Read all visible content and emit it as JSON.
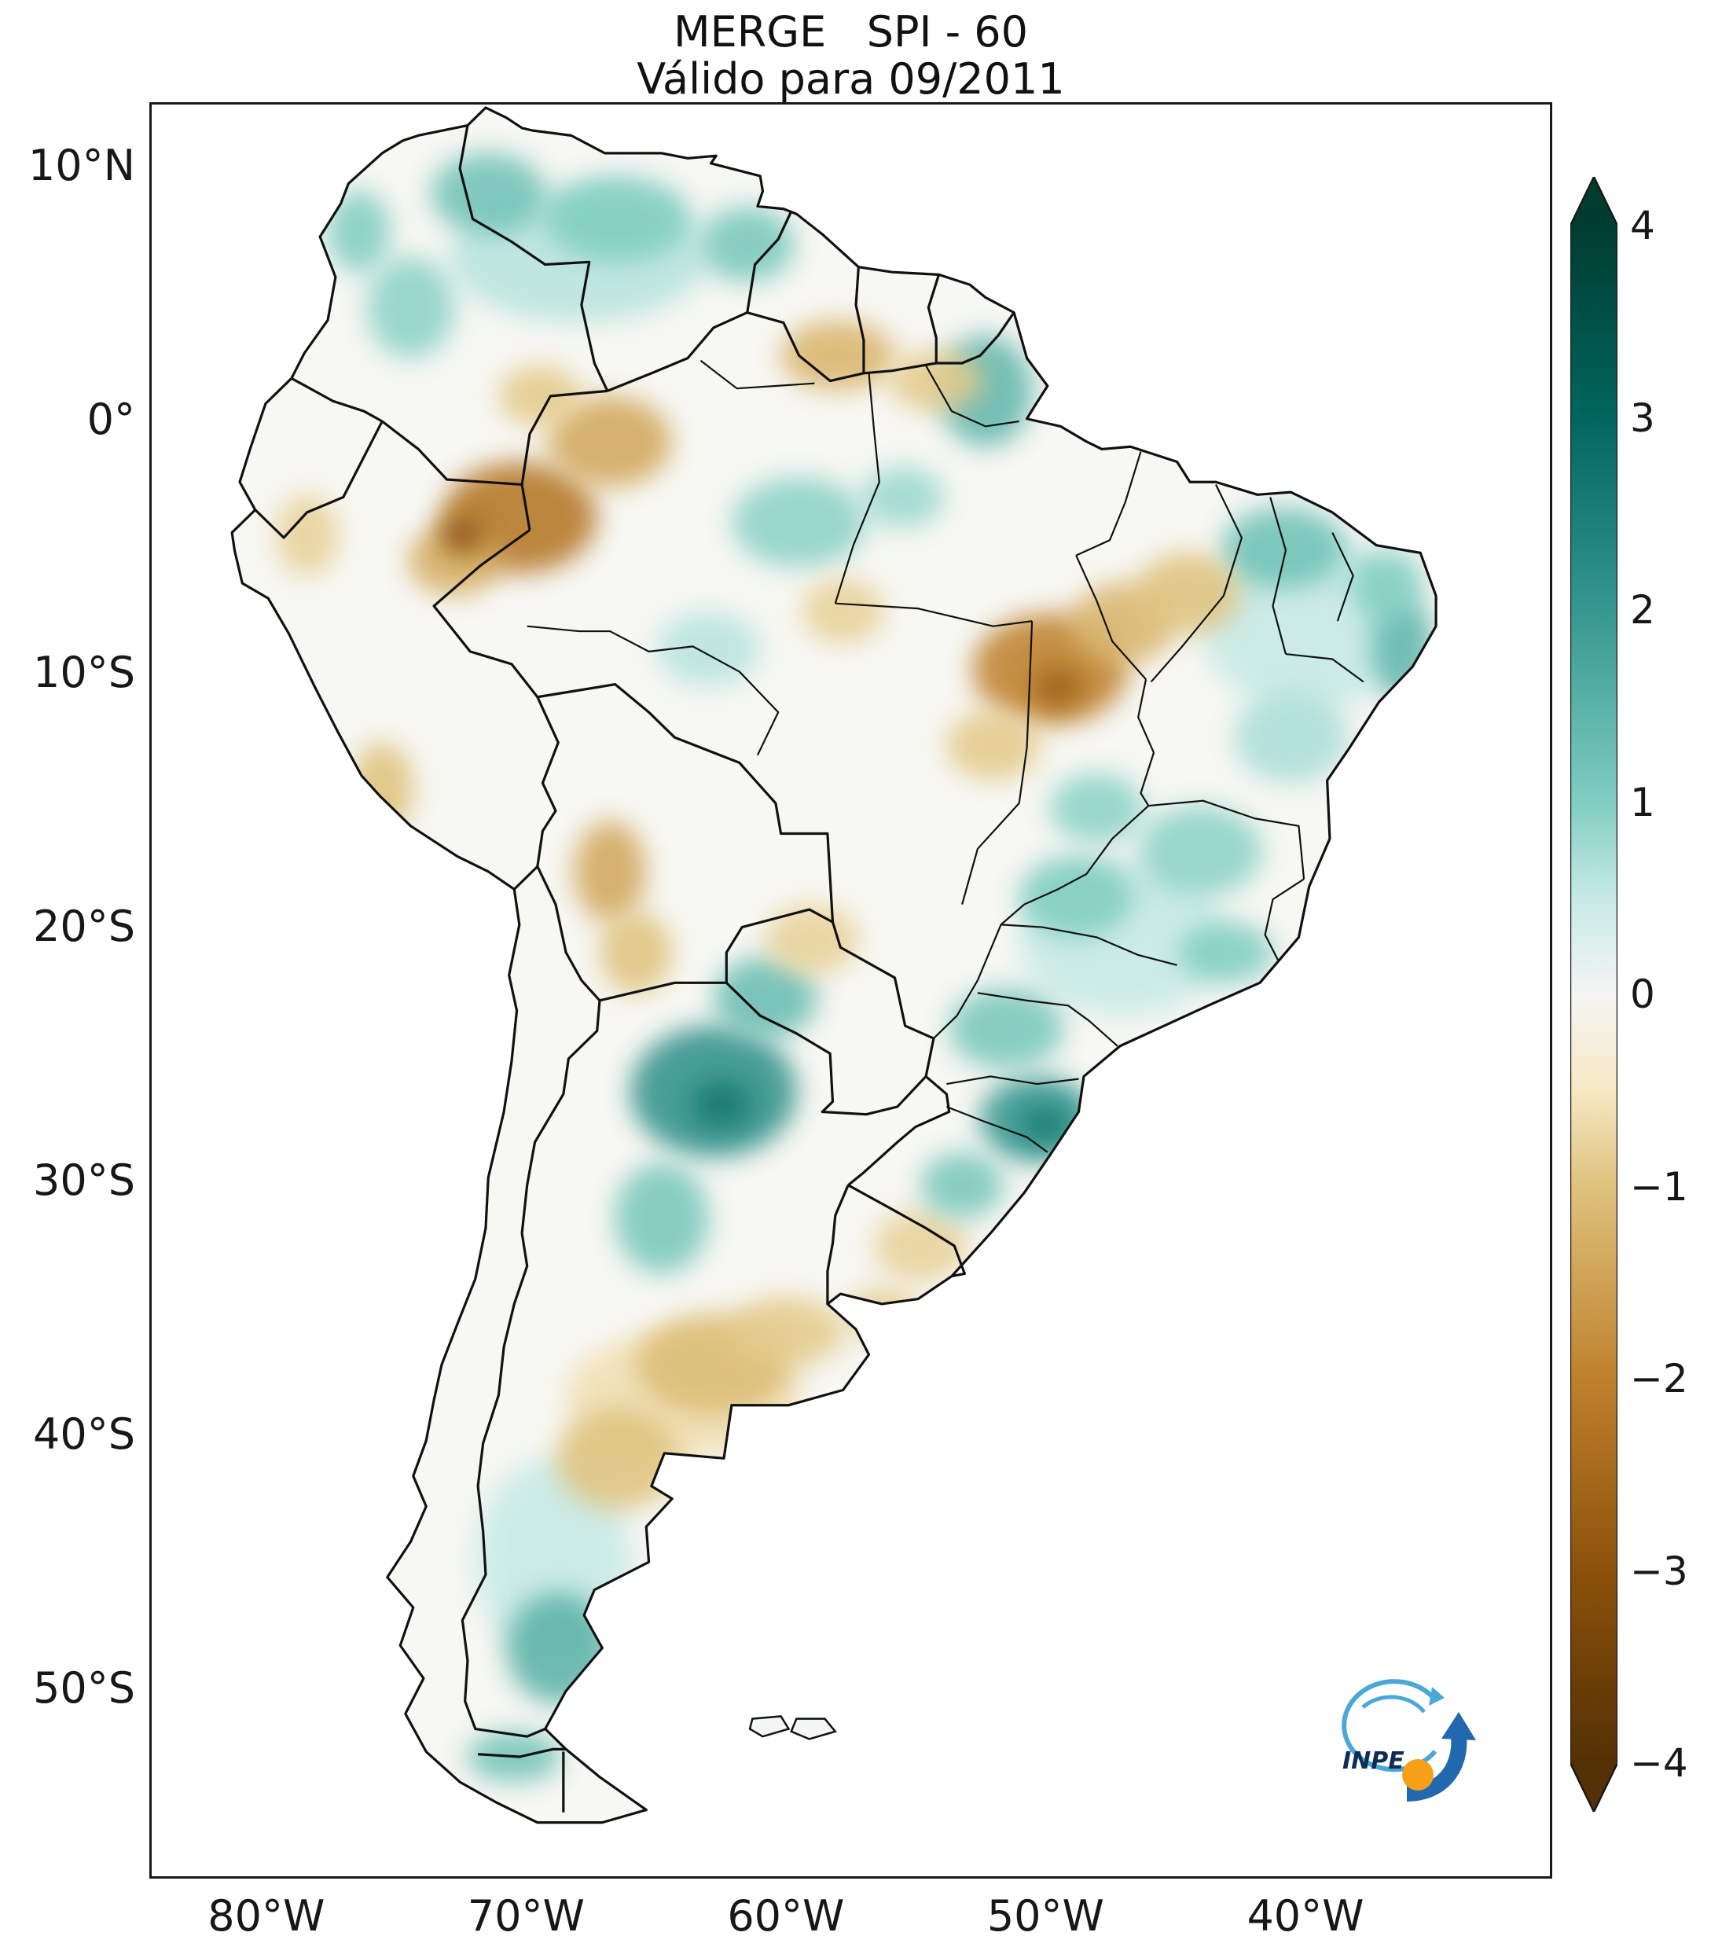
{
  "figure": {
    "title": "MERGE   SPI - 60",
    "subtitle": "Válido para 09/2011"
  },
  "axes": {
    "y_ticks": [
      {
        "label": "10°N",
        "lat": 10
      },
      {
        "label": "0°",
        "lat": 0
      },
      {
        "label": "10°S",
        "lat": -10
      },
      {
        "label": "20°S",
        "lat": -20
      },
      {
        "label": "30°S",
        "lat": -30
      },
      {
        "label": "40°S",
        "lat": -40
      },
      {
        "label": "50°S",
        "lat": -50
      }
    ],
    "x_ticks": [
      {
        "label": "80°W",
        "lon": -80
      },
      {
        "label": "70°W",
        "lon": -70
      },
      {
        "label": "60°W",
        "lon": -60
      },
      {
        "label": "50°W",
        "lon": -50
      },
      {
        "label": "40°W",
        "lon": -40
      }
    ]
  },
  "colorbar": {
    "colormap": "BrBG",
    "extend": "both",
    "range": [
      -4,
      4
    ],
    "ticks": [
      {
        "label": "4",
        "v": 4
      },
      {
        "label": "3",
        "v": 3
      },
      {
        "label": "2",
        "v": 2
      },
      {
        "label": "1",
        "v": 1
      },
      {
        "label": "0",
        "v": 0
      },
      {
        "label": "−1",
        "v": -1
      },
      {
        "label": "−2",
        "v": -2
      },
      {
        "label": "−3",
        "v": -3
      },
      {
        "label": "−4",
        "v": -4
      }
    ],
    "stops": [
      {
        "v": 4,
        "c": "#003c30"
      },
      {
        "v": 3,
        "c": "#01665e"
      },
      {
        "v": 2,
        "c": "#35978f"
      },
      {
        "v": 1,
        "c": "#80cdc1"
      },
      {
        "v": 0.5,
        "c": "#c7eae5"
      },
      {
        "v": 0,
        "c": "#f5f5f5"
      },
      {
        "v": -0.5,
        "c": "#f6e8c3"
      },
      {
        "v": -1,
        "c": "#dfc27d"
      },
      {
        "v": -2,
        "c": "#bf812d"
      },
      {
        "v": -3,
        "c": "#8c510a"
      },
      {
        "v": -4,
        "c": "#543005"
      }
    ]
  },
  "logo": {
    "label": "INPE"
  },
  "chart_data": {
    "type": "heatmap",
    "title": "MERGE   SPI - 60",
    "subtitle": "Válido para 09/2011",
    "product": "MERGE",
    "variable": "SPI-60 (Standardized Precipitation Index, 60 months)",
    "valid_for": "09/2011",
    "region": "South America",
    "x_tick_labels": [
      "80°W",
      "70°W",
      "60°W",
      "50°W",
      "40°W"
    ],
    "y_tick_labels": [
      "10°N",
      "0°",
      "10°S",
      "20°S",
      "30°S",
      "40°S",
      "50°S"
    ],
    "colorbar_range": [
      -4,
      4
    ],
    "extent": {
      "lon_min": -84.5,
      "lon_max": -30.5,
      "lat_min": -57.5,
      "lat_max": 12.5
    },
    "land_base_spi_color": "#f7f7f3",
    "anomalies": [
      {
        "lon": -68.0,
        "lat": 6.5,
        "rx": 5.0,
        "ry": 2.6,
        "spi": 0.6
      },
      {
        "lon": -71.5,
        "lat": 9.0,
        "rx": 2.2,
        "ry": 1.6,
        "spi": 1.2
      },
      {
        "lon": -66.5,
        "lat": 8.0,
        "rx": 2.8,
        "ry": 1.7,
        "spi": 1.0
      },
      {
        "lon": -61.5,
        "lat": 7.0,
        "rx": 1.8,
        "ry": 1.5,
        "spi": 1.1
      },
      {
        "lon": -74.5,
        "lat": 4.5,
        "rx": 1.7,
        "ry": 2.0,
        "spi": 0.9
      },
      {
        "lon": -76.5,
        "lat": 7.5,
        "rx": 1.2,
        "ry": 1.6,
        "spi": 1.0
      },
      {
        "lon": -52.3,
        "lat": 1.2,
        "rx": 1.8,
        "ry": 2.2,
        "spi": 1.4
      },
      {
        "lon": -59.5,
        "lat": -4.0,
        "rx": 2.6,
        "ry": 1.8,
        "spi": 0.9
      },
      {
        "lon": -55.5,
        "lat": -3.0,
        "rx": 1.6,
        "ry": 1.2,
        "spi": 0.8
      },
      {
        "lon": -40.8,
        "lat": -5.0,
        "rx": 2.4,
        "ry": 1.6,
        "spi": 1.2
      },
      {
        "lon": -36.2,
        "lat": -9.0,
        "rx": 1.2,
        "ry": 2.0,
        "spi": 1.4
      },
      {
        "lon": -36.8,
        "lat": -6.5,
        "rx": 1.4,
        "ry": 1.4,
        "spi": 1.0
      },
      {
        "lon": -40.0,
        "lat": -8.0,
        "rx": 4.0,
        "ry": 3.5,
        "spi": 0.5
      },
      {
        "lon": -40.5,
        "lat": -12.5,
        "rx": 2.2,
        "ry": 1.8,
        "spi": 0.7
      },
      {
        "lon": -44.0,
        "lat": -17.0,
        "rx": 2.4,
        "ry": 1.8,
        "spi": 0.9
      },
      {
        "lon": -48.8,
        "lat": -18.8,
        "rx": 2.2,
        "ry": 1.6,
        "spi": 1.0
      },
      {
        "lon": -47.0,
        "lat": -20.5,
        "rx": 4.0,
        "ry": 3.0,
        "spi": 0.5
      },
      {
        "lon": -43.0,
        "lat": -21.0,
        "rx": 1.8,
        "ry": 1.2,
        "spi": 1.0
      },
      {
        "lon": -48.0,
        "lat": -15.3,
        "rx": 1.8,
        "ry": 1.4,
        "spi": 0.9
      },
      {
        "lon": -51.5,
        "lat": -24.0,
        "rx": 2.2,
        "ry": 1.6,
        "spi": 1.1
      },
      {
        "lon": -50.3,
        "lat": -27.6,
        "rx": 2.2,
        "ry": 1.7,
        "spi": 2.0
      },
      {
        "lon": -50.0,
        "lat": -27.8,
        "rx": 0.9,
        "ry": 0.7,
        "spi": 2.6
      },
      {
        "lon": -53.2,
        "lat": -30.2,
        "rx": 1.6,
        "ry": 1.3,
        "spi": 1.1
      },
      {
        "lon": -62.8,
        "lat": -26.5,
        "rx": 3.2,
        "ry": 2.6,
        "spi": 2.1
      },
      {
        "lon": -62.5,
        "lat": -27.0,
        "rx": 1.2,
        "ry": 1.0,
        "spi": 2.6
      },
      {
        "lon": -60.8,
        "lat": -22.8,
        "rx": 2.0,
        "ry": 1.6,
        "spi": 1.3
      },
      {
        "lon": -64.8,
        "lat": -31.5,
        "rx": 1.8,
        "ry": 2.2,
        "spi": 1.1
      },
      {
        "lon": -68.8,
        "lat": -48.5,
        "rx": 2.0,
        "ry": 2.2,
        "spi": 1.5
      },
      {
        "lon": -70.5,
        "lat": -52.8,
        "rx": 1.8,
        "ry": 1.0,
        "spi": 1.2
      },
      {
        "lon": -69.0,
        "lat": -45.0,
        "rx": 3.0,
        "ry": 4.0,
        "spi": 0.5
      },
      {
        "lon": -63.0,
        "lat": -9.0,
        "rx": 2.0,
        "ry": 1.5,
        "spi": 0.6
      },
      {
        "lon": -70.3,
        "lat": -3.8,
        "rx": 3.0,
        "ry": 2.2,
        "spi": -2.2
      },
      {
        "lon": -72.5,
        "lat": -4.5,
        "rx": 0.9,
        "ry": 0.7,
        "spi": -3.0
      },
      {
        "lon": -72.8,
        "lat": -5.5,
        "rx": 1.8,
        "ry": 1.4,
        "spi": -1.3
      },
      {
        "lon": -66.8,
        "lat": -0.8,
        "rx": 2.4,
        "ry": 1.8,
        "spi": -1.4
      },
      {
        "lon": -69.5,
        "lat": 1.0,
        "rx": 1.6,
        "ry": 1.2,
        "spi": -0.9
      },
      {
        "lon": -58.0,
        "lat": 2.6,
        "rx": 2.2,
        "ry": 1.4,
        "spi": -1.2
      },
      {
        "lon": -54.2,
        "lat": 1.6,
        "rx": 1.8,
        "ry": 1.2,
        "spi": -0.9
      },
      {
        "lon": -49.8,
        "lat": -9.8,
        "rx": 3.0,
        "ry": 2.2,
        "spi": -2.0
      },
      {
        "lon": -49.5,
        "lat": -10.5,
        "rx": 1.0,
        "ry": 0.8,
        "spi": -2.6
      },
      {
        "lon": -47.0,
        "lat": -8.0,
        "rx": 2.0,
        "ry": 1.6,
        "spi": -1.2
      },
      {
        "lon": -52.0,
        "lat": -12.8,
        "rx": 1.8,
        "ry": 1.4,
        "spi": -0.9
      },
      {
        "lon": -44.5,
        "lat": -6.8,
        "rx": 2.0,
        "ry": 1.6,
        "spi": -1.0
      },
      {
        "lon": -66.8,
        "lat": -17.8,
        "rx": 1.4,
        "ry": 2.0,
        "spi": -1.4
      },
      {
        "lon": -65.8,
        "lat": -21.0,
        "rx": 1.4,
        "ry": 1.6,
        "spi": -1.0
      },
      {
        "lon": -59.0,
        "lat": -20.5,
        "rx": 1.8,
        "ry": 1.4,
        "spi": -0.8
      },
      {
        "lon": -62.8,
        "lat": -37.3,
        "rx": 3.0,
        "ry": 2.0,
        "spi": -1.1
      },
      {
        "lon": -66.5,
        "lat": -41.0,
        "rx": 2.4,
        "ry": 2.0,
        "spi": -1.0
      },
      {
        "lon": -64.0,
        "lat": -38.5,
        "rx": 4.5,
        "ry": 2.5,
        "spi": -0.6
      },
      {
        "lon": -60.0,
        "lat": -36.0,
        "rx": 2.2,
        "ry": 1.4,
        "spi": -0.9
      },
      {
        "lon": -54.8,
        "lat": -32.6,
        "rx": 1.8,
        "ry": 1.4,
        "spi": -0.8
      },
      {
        "lon": -56.3,
        "lat": -35.3,
        "rx": 1.4,
        "ry": 1.0,
        "spi": -0.9
      },
      {
        "lon": -75.6,
        "lat": -14.5,
        "rx": 1.2,
        "ry": 1.8,
        "spi": -1.0
      },
      {
        "lon": -78.5,
        "lat": -4.5,
        "rx": 1.2,
        "ry": 1.6,
        "spi": -0.8
      },
      {
        "lon": -57.8,
        "lat": -7.5,
        "rx": 1.6,
        "ry": 1.3,
        "spi": -0.8
      }
    ]
  }
}
